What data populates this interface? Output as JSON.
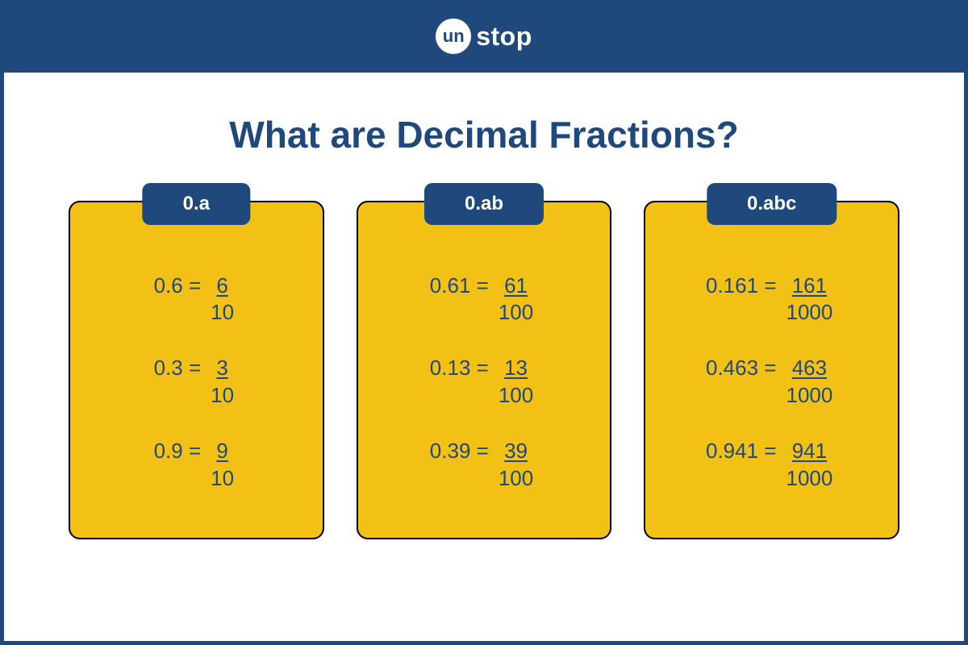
{
  "colors": {
    "header_bg": "#1f497d",
    "card_bg": "#f3c016",
    "card_border": "#000000",
    "text_primary": "#1f497d",
    "logo_circle_bg": "#ffffff",
    "page_bg": "#ffffff"
  },
  "typography": {
    "title_fontsize": 46,
    "tab_fontsize": 24,
    "equation_fontsize": 26,
    "logo_fontsize": 32
  },
  "logo": {
    "circle_text": "un",
    "text": "stop"
  },
  "title": "What are Decimal Fractions?",
  "cards": [
    {
      "tab": "0.a",
      "equations": [
        {
          "decimal": "0.6",
          "numerator": "6",
          "denominator": "10"
        },
        {
          "decimal": "0.3",
          "numerator": "3",
          "denominator": "10"
        },
        {
          "decimal": "0.9",
          "numerator": "9",
          "denominator": "10"
        }
      ]
    },
    {
      "tab": "0.ab",
      "equations": [
        {
          "decimal": "0.61",
          "numerator": "61",
          "denominator": "100"
        },
        {
          "decimal": "0.13",
          "numerator": "13",
          "denominator": "100"
        },
        {
          "decimal": "0.39",
          "numerator": "39",
          "denominator": "100"
        }
      ]
    },
    {
      "tab": "0.abc",
      "equations": [
        {
          "decimal": "0.161",
          "numerator": "161",
          "denominator": "1000"
        },
        {
          "decimal": "0.463",
          "numerator": "463",
          "denominator": "1000"
        },
        {
          "decimal": "0.941",
          "numerator": "941",
          "denominator": "1000"
        }
      ]
    }
  ]
}
